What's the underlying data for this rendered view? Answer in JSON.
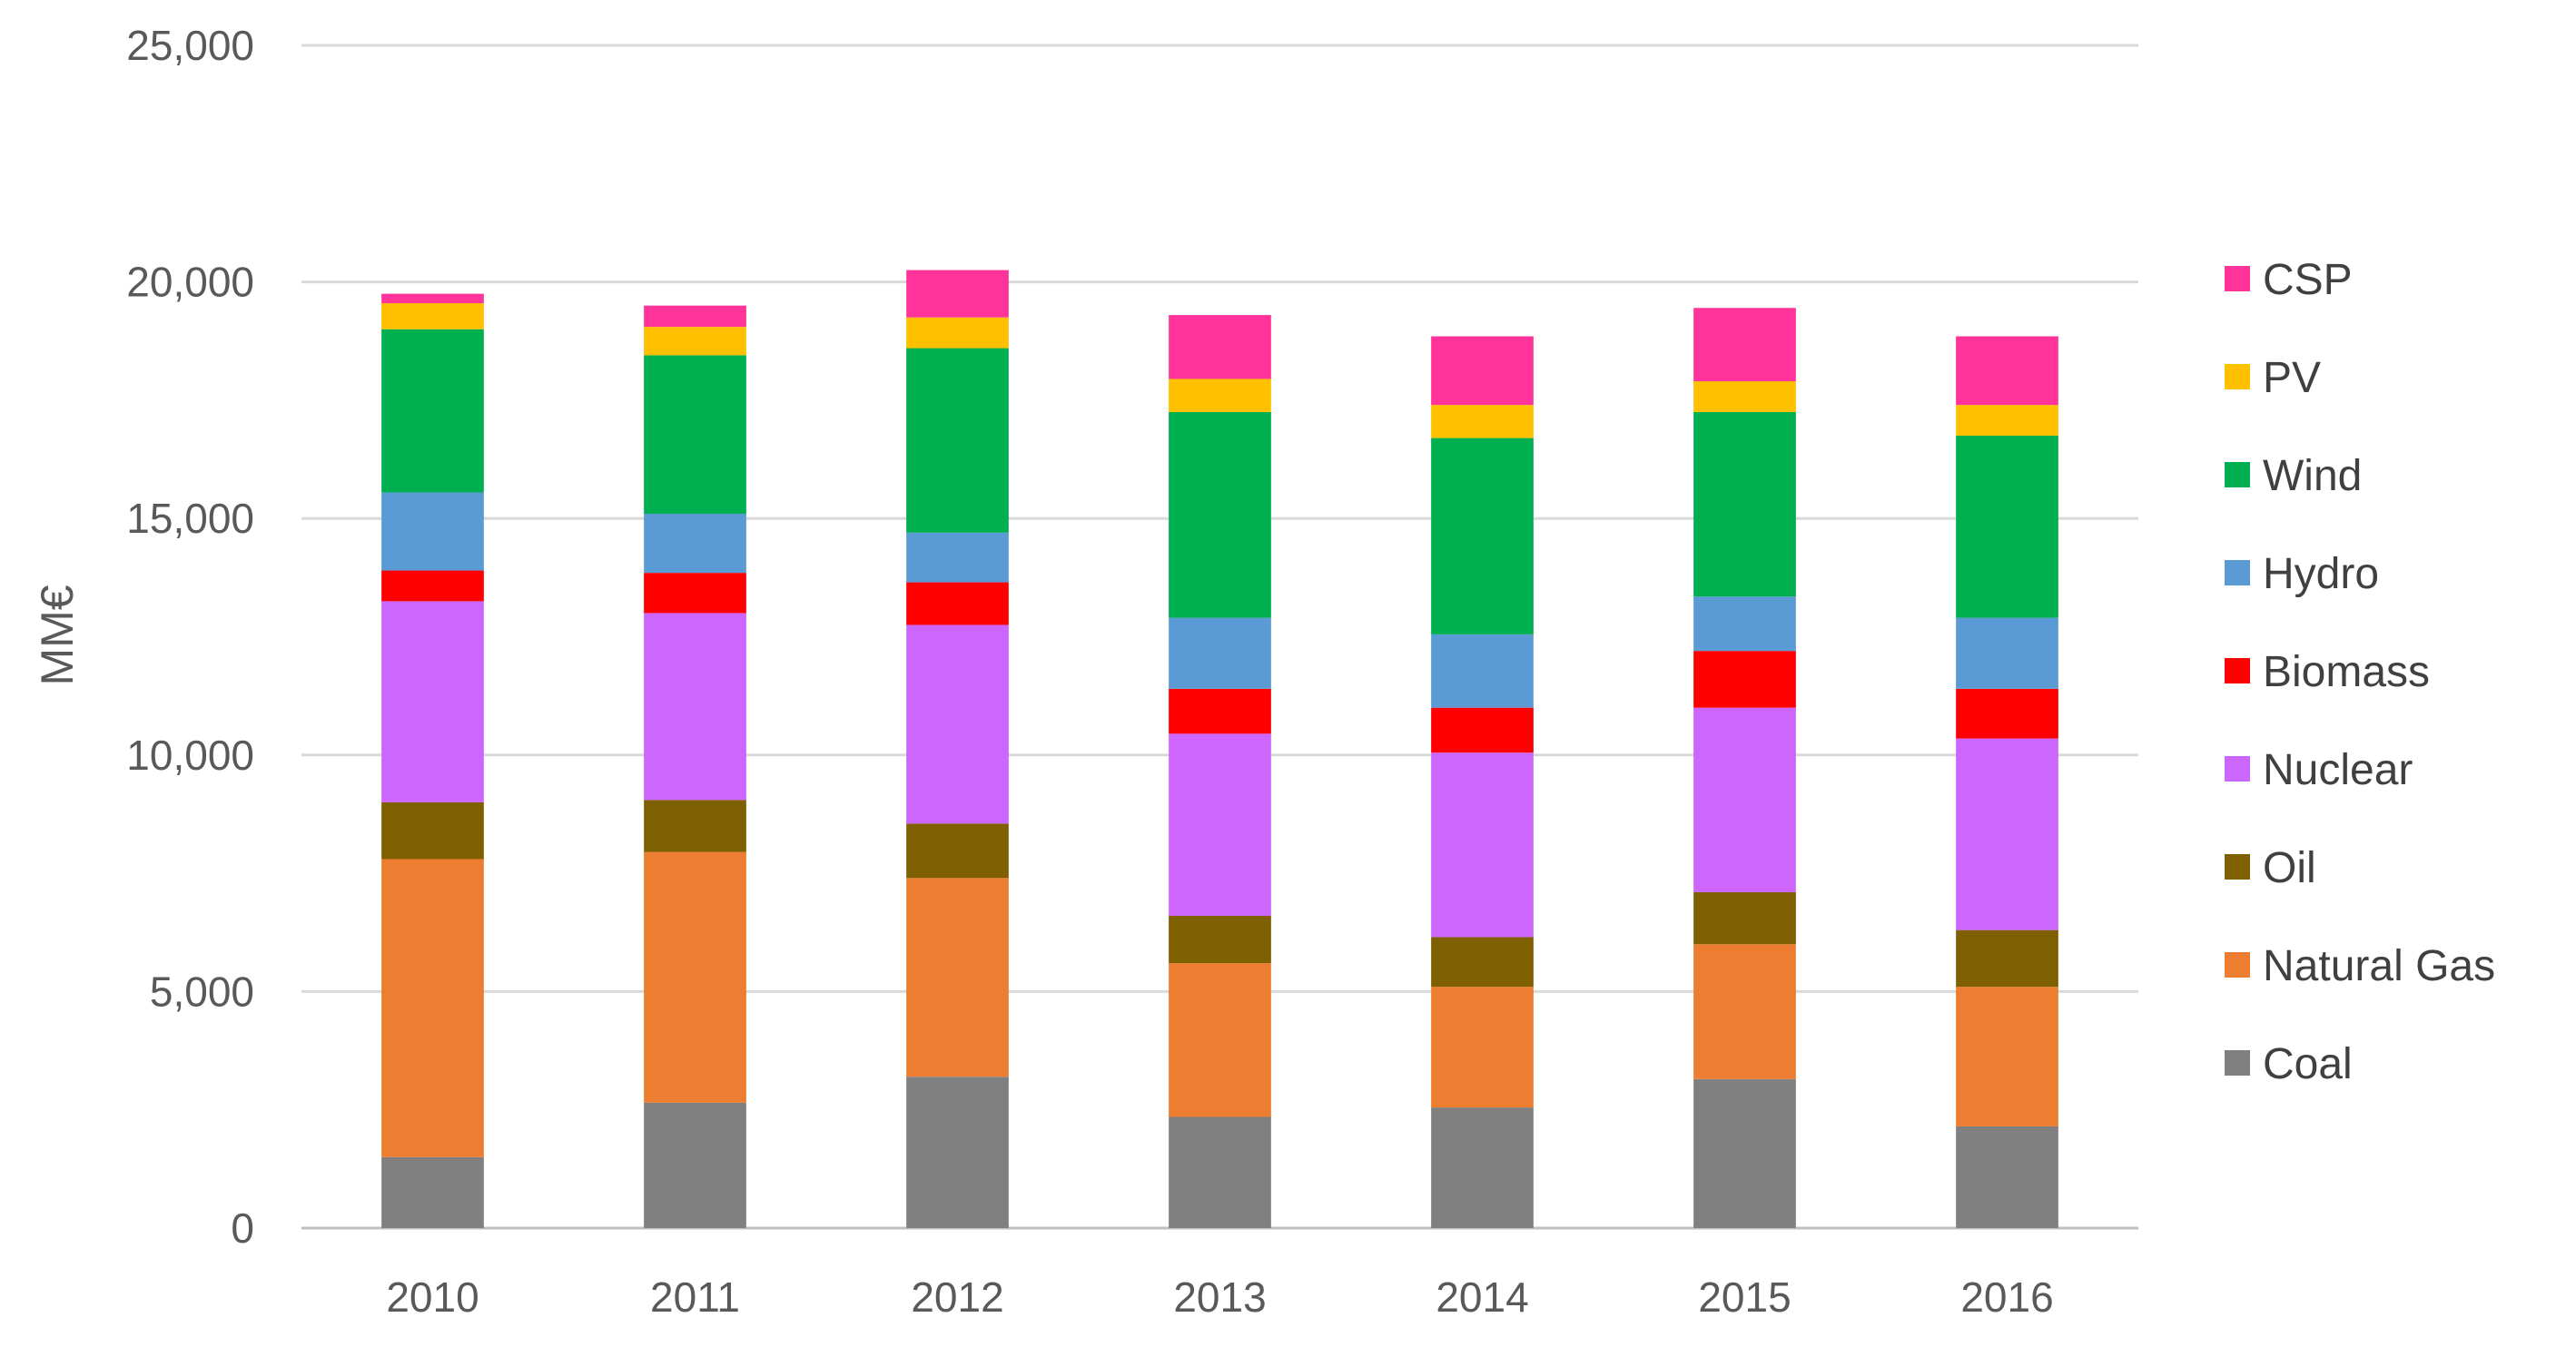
{
  "chart_data": {
    "type": "bar",
    "stacked": true,
    "title": "",
    "xlabel": "",
    "ylabel": "MM€",
    "ylim": [
      0,
      25000
    ],
    "yticks": [
      0,
      5000,
      10000,
      15000,
      20000,
      25000
    ],
    "ytick_labels": [
      "0",
      "5,000",
      "10,000",
      "15,000",
      "20,000",
      "25,000"
    ],
    "grid": true,
    "legend_position": "right",
    "categories": [
      "2010",
      "2011",
      "2012",
      "2013",
      "2014",
      "2015",
      "2016"
    ],
    "series": [
      {
        "name": "Coal",
        "color": "#808080",
        "values": [
          1500,
          2650,
          3200,
          2350,
          2550,
          3150,
          2150
        ]
      },
      {
        "name": "Natural Gas",
        "color": "#ED7D31",
        "values": [
          6300,
          5300,
          4200,
          3250,
          2550,
          2850,
          2950
        ]
      },
      {
        "name": "Oil",
        "color": "#7F6000",
        "values": [
          1200,
          1100,
          1150,
          1000,
          1050,
          1100,
          1200
        ]
      },
      {
        "name": "Nuclear",
        "color": "#CC66FF",
        "values": [
          4250,
          3950,
          4200,
          3850,
          3900,
          3900,
          4050
        ]
      },
      {
        "name": "Biomass",
        "color": "#FF0000",
        "values": [
          650,
          850,
          900,
          950,
          950,
          1200,
          1050
        ]
      },
      {
        "name": "Hydro",
        "color": "#5B9BD5",
        "values": [
          1650,
          1250,
          1050,
          1500,
          1550,
          1150,
          1500
        ]
      },
      {
        "name": "Wind",
        "color": "#00B050",
        "values": [
          3450,
          3350,
          3900,
          4350,
          4150,
          3900,
          3850
        ]
      },
      {
        "name": "PV",
        "color": "#FFC000",
        "values": [
          550,
          600,
          650,
          700,
          700,
          650,
          650
        ]
      },
      {
        "name": "CSP",
        "color": "#FF3399",
        "values": [
          200,
          450,
          1000,
          1350,
          1450,
          1550,
          1450
        ]
      }
    ]
  }
}
